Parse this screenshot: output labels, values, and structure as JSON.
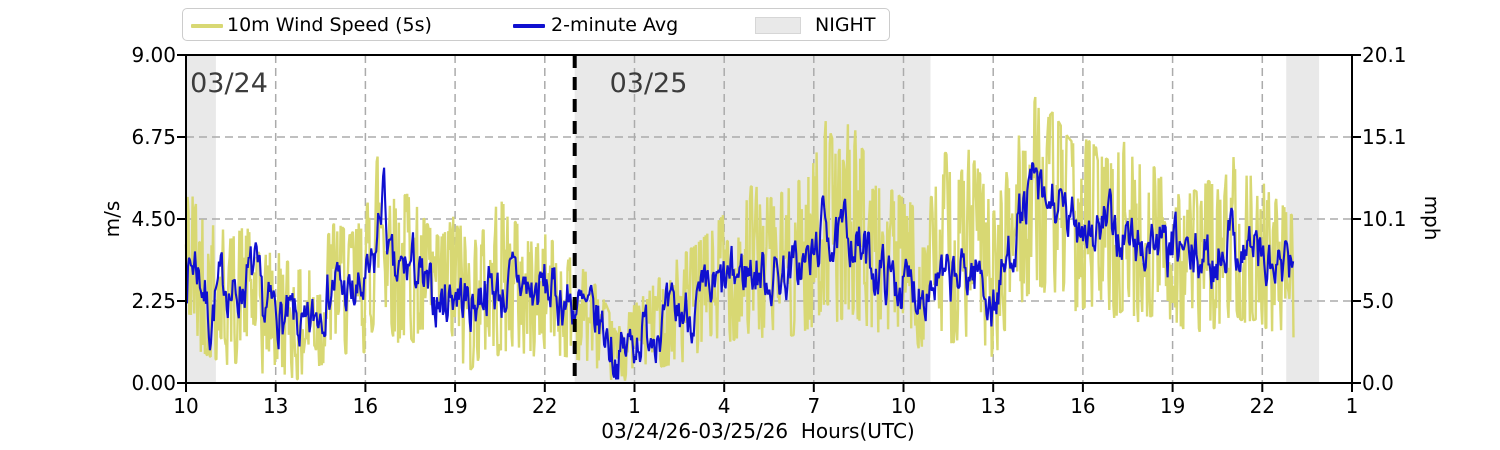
{
  "figure": {
    "legend": {
      "items": [
        {
          "label": "10m Wind Speed (5s)",
          "swatch": "line",
          "color": "#d8d873"
        },
        {
          "label": "2-minute Avg",
          "swatch": "line",
          "color": "#1010d0"
        },
        {
          "label": "NIGHT",
          "swatch": "patch",
          "color": "#e9e9e9"
        }
      ]
    },
    "left_axis": {
      "label": "m/s",
      "tick_labels": [
        "0.00",
        "2.25",
        "4.50",
        "6.75",
        "9.00"
      ],
      "tick_values": [
        0,
        2.25,
        4.5,
        6.75,
        9
      ]
    },
    "right_axis": {
      "label": "mph",
      "tick_labels": [
        "0.0",
        "5.0",
        "10.1",
        "15.1",
        "20.1"
      ],
      "tick_values_mph": [
        0,
        5.0,
        10.1,
        15.1,
        20.1
      ]
    },
    "x_axis": {
      "label": "03/24/26-03/25/26  Hours(UTC)",
      "tick_labels": [
        "10",
        "13",
        "16",
        "19",
        "22",
        "1",
        "4",
        "7",
        "10",
        "13",
        "16",
        "19",
        "22",
        "1"
      ],
      "tick_hours": [
        10,
        13,
        16,
        19,
        22,
        25,
        28,
        31,
        34,
        37,
        40,
        43,
        46,
        49
      ]
    },
    "annotations": [
      {
        "text": "03/24",
        "hour": 10.07
      },
      {
        "text": "03/25",
        "hour": 24.1
      }
    ],
    "colors": {
      "wind_5s": "#d8d873",
      "avg_2min": "#1010d0",
      "night": "#e9e9e9",
      "grid": "#ababab",
      "date_line": "#000000",
      "annotation_text": "#3c3c3c"
    }
  },
  "chart_data": {
    "type": "line",
    "title": "",
    "xlabel": "03/24/26-03/25/26  Hours(UTC)",
    "ylabel_left": "m/s",
    "ylabel_right": "mph",
    "x_range_hours_utc": [
      10,
      49
    ],
    "ylim_ms": [
      0,
      9
    ],
    "ylim_mph": [
      0,
      20.1
    ],
    "grid": true,
    "legend_position": "top-left-outside",
    "night_spans_hours": [
      [
        10.0,
        11.0
      ],
      [
        23.0,
        34.9
      ],
      [
        46.8,
        47.9
      ]
    ],
    "date_boundary_line_hour": 23.0,
    "data_end_hour": 47.05,
    "series": [
      {
        "name": "2-minute Avg",
        "style": "jagged-line",
        "points_hour_ms": [
          [
            10.0,
            3.0
          ],
          [
            10.3,
            3.4
          ],
          [
            10.6,
            2.6
          ],
          [
            10.8,
            1.6
          ],
          [
            11.0,
            2.4
          ],
          [
            11.3,
            2.9
          ],
          [
            11.6,
            2.3
          ],
          [
            12.0,
            2.8
          ],
          [
            12.3,
            3.1
          ],
          [
            12.6,
            1.9
          ],
          [
            13.0,
            2.1
          ],
          [
            13.3,
            1.6
          ],
          [
            13.6,
            1.8
          ],
          [
            14.0,
            1.2
          ],
          [
            14.3,
            1.8
          ],
          [
            14.6,
            2.3
          ],
          [
            15.0,
            2.8
          ],
          [
            15.3,
            2.5
          ],
          [
            15.6,
            2.3
          ],
          [
            16.0,
            2.6
          ],
          [
            16.3,
            3.2
          ],
          [
            16.6,
            5.5
          ],
          [
            16.8,
            3.4
          ],
          [
            17.0,
            2.8
          ],
          [
            17.3,
            3.1
          ],
          [
            17.6,
            3.3
          ],
          [
            18.0,
            2.5
          ],
          [
            18.3,
            2.3
          ],
          [
            18.6,
            2.2
          ],
          [
            19.0,
            2.6
          ],
          [
            19.3,
            2.3
          ],
          [
            19.6,
            2.1
          ],
          [
            20.0,
            2.7
          ],
          [
            20.3,
            2.6
          ],
          [
            20.6,
            2.4
          ],
          [
            21.0,
            2.9
          ],
          [
            21.3,
            2.7
          ],
          [
            21.6,
            2.4
          ],
          [
            22.0,
            2.7
          ],
          [
            22.3,
            2.4
          ],
          [
            22.6,
            2.3
          ],
          [
            23.0,
            2.1
          ],
          [
            23.4,
            1.9
          ],
          [
            23.8,
            1.7
          ],
          [
            24.1,
            1.3
          ],
          [
            24.4,
            0.6
          ],
          [
            24.7,
            0.9
          ],
          [
            25.0,
            1.2
          ],
          [
            25.5,
            1.5
          ],
          [
            26.0,
            1.7
          ],
          [
            26.5,
            1.9
          ],
          [
            27.0,
            2.0
          ],
          [
            27.5,
            2.4
          ],
          [
            28.0,
            2.7
          ],
          [
            28.5,
            3.0
          ],
          [
            29.0,
            3.1
          ],
          [
            29.5,
            2.9
          ],
          [
            30.0,
            3.0
          ],
          [
            30.5,
            3.2
          ],
          [
            31.0,
            3.4
          ],
          [
            31.4,
            4.6
          ],
          [
            31.7,
            3.6
          ],
          [
            32.1,
            4.3
          ],
          [
            32.5,
            3.7
          ],
          [
            33.0,
            3.2
          ],
          [
            33.5,
            2.9
          ],
          [
            34.0,
            2.7
          ],
          [
            34.5,
            2.6
          ],
          [
            35.0,
            2.8
          ],
          [
            35.5,
            2.7
          ],
          [
            36.0,
            3.0
          ],
          [
            36.5,
            3.1
          ],
          [
            37.0,
            2.0
          ],
          [
            37.4,
            3.2
          ],
          [
            37.8,
            4.3
          ],
          [
            38.1,
            4.9
          ],
          [
            38.4,
            5.6
          ],
          [
            38.7,
            4.7
          ],
          [
            39.0,
            5.0
          ],
          [
            39.3,
            4.6
          ],
          [
            39.6,
            4.3
          ],
          [
            40.0,
            4.5
          ],
          [
            40.4,
            4.1
          ],
          [
            40.8,
            4.4
          ],
          [
            41.2,
            4.0
          ],
          [
            41.6,
            3.9
          ],
          [
            42.0,
            3.7
          ],
          [
            42.4,
            4.0
          ],
          [
            42.8,
            3.5
          ],
          [
            43.2,
            3.8
          ],
          [
            43.6,
            3.3
          ],
          [
            44.0,
            3.5
          ],
          [
            44.4,
            3.2
          ],
          [
            44.9,
            4.2
          ],
          [
            45.3,
            3.6
          ],
          [
            45.7,
            3.9
          ],
          [
            46.1,
            3.2
          ],
          [
            46.5,
            3.0
          ],
          [
            46.8,
            3.1
          ],
          [
            47.05,
            2.9
          ]
        ]
      },
      {
        "name": "10m Wind Speed (5s)",
        "style": "noisy-band",
        "envelope_hi_hour_ms": [
          [
            10.0,
            5.2
          ],
          [
            10.5,
            4.9
          ],
          [
            11.0,
            4.4
          ],
          [
            11.5,
            3.9
          ],
          [
            12.0,
            4.3
          ],
          [
            12.5,
            3.4
          ],
          [
            13.0,
            3.6
          ],
          [
            13.5,
            3.2
          ],
          [
            14.0,
            3.0
          ],
          [
            14.5,
            3.6
          ],
          [
            15.0,
            4.4
          ],
          [
            15.5,
            4.0
          ],
          [
            16.0,
            4.6
          ],
          [
            16.6,
            6.9
          ],
          [
            17.0,
            5.3
          ],
          [
            17.5,
            5.1
          ],
          [
            18.0,
            4.4
          ],
          [
            18.5,
            3.9
          ],
          [
            19.0,
            4.6
          ],
          [
            19.5,
            3.7
          ],
          [
            20.0,
            4.2
          ],
          [
            20.5,
            5.0
          ],
          [
            21.0,
            4.4
          ],
          [
            21.5,
            3.9
          ],
          [
            22.0,
            4.1
          ],
          [
            22.5,
            3.6
          ],
          [
            23.0,
            3.3
          ],
          [
            23.5,
            2.9
          ],
          [
            24.0,
            2.2
          ],
          [
            24.4,
            1.4
          ],
          [
            25.0,
            2.1
          ],
          [
            25.5,
            2.5
          ],
          [
            26.0,
            3.0
          ],
          [
            26.5,
            3.4
          ],
          [
            27.0,
            3.7
          ],
          [
            27.5,
            4.1
          ],
          [
            28.0,
            4.6
          ],
          [
            28.5,
            5.1
          ],
          [
            29.0,
            5.4
          ],
          [
            29.5,
            5.0
          ],
          [
            30.0,
            5.2
          ],
          [
            30.5,
            5.5
          ],
          [
            31.0,
            6.0
          ],
          [
            31.4,
            7.2
          ],
          [
            31.8,
            6.2
          ],
          [
            32.2,
            7.3
          ],
          [
            32.6,
            6.4
          ],
          [
            33.0,
            5.8
          ],
          [
            33.5,
            5.3
          ],
          [
            34.0,
            5.0
          ],
          [
            34.5,
            4.8
          ],
          [
            35.0,
            5.1
          ],
          [
            35.4,
            6.3
          ],
          [
            35.8,
            5.4
          ],
          [
            36.2,
            6.4
          ],
          [
            36.6,
            5.6
          ],
          [
            37.0,
            4.6
          ],
          [
            37.4,
            5.6
          ],
          [
            37.8,
            6.8
          ],
          [
            38.2,
            7.3
          ],
          [
            38.45,
            7.9
          ],
          [
            38.7,
            7.1
          ],
          [
            39.0,
            7.4
          ],
          [
            39.4,
            6.8
          ],
          [
            39.8,
            6.4
          ],
          [
            40.2,
            6.7
          ],
          [
            40.6,
            6.2
          ],
          [
            41.0,
            6.0
          ],
          [
            41.4,
            6.6
          ],
          [
            41.8,
            5.9
          ],
          [
            42.2,
            6.1
          ],
          [
            42.6,
            5.6
          ],
          [
            43.0,
            5.9
          ],
          [
            43.4,
            5.4
          ],
          [
            43.8,
            5.2
          ],
          [
            44.2,
            5.5
          ],
          [
            44.6,
            5.2
          ],
          [
            45.0,
            6.2
          ],
          [
            45.4,
            5.6
          ],
          [
            45.8,
            5.8
          ],
          [
            46.2,
            5.2
          ],
          [
            46.6,
            4.9
          ],
          [
            47.05,
            4.5
          ]
        ],
        "envelope_lo_hour_ms": [
          [
            10.0,
            1.3
          ],
          [
            10.5,
            1.1
          ],
          [
            11.0,
            0.9
          ],
          [
            11.5,
            0.7
          ],
          [
            12.0,
            1.0
          ],
          [
            12.5,
            0.5
          ],
          [
            13.0,
            0.6
          ],
          [
            13.5,
            0.4
          ],
          [
            14.0,
            0.3
          ],
          [
            14.5,
            0.7
          ],
          [
            15.0,
            1.2
          ],
          [
            15.5,
            1.0
          ],
          [
            16.0,
            1.1
          ],
          [
            16.6,
            2.6
          ],
          [
            17.0,
            1.3
          ],
          [
            17.5,
            1.5
          ],
          [
            18.0,
            0.9
          ],
          [
            18.5,
            0.7
          ],
          [
            19.0,
            1.0
          ],
          [
            19.5,
            0.6
          ],
          [
            20.0,
            1.1
          ],
          [
            20.5,
            1.0
          ],
          [
            21.0,
            1.3
          ],
          [
            21.5,
            0.9
          ],
          [
            22.0,
            1.2
          ],
          [
            22.5,
            1.0
          ],
          [
            23.0,
            0.9
          ],
          [
            23.5,
            0.8
          ],
          [
            24.0,
            0.5
          ],
          [
            24.4,
            0.15
          ],
          [
            25.0,
            0.5
          ],
          [
            25.5,
            0.7
          ],
          [
            26.0,
            0.7
          ],
          [
            26.5,
            0.8
          ],
          [
            27.0,
            0.9
          ],
          [
            27.5,
            1.1
          ],
          [
            28.0,
            1.3
          ],
          [
            28.5,
            1.5
          ],
          [
            29.0,
            1.6
          ],
          [
            29.5,
            1.4
          ],
          [
            30.0,
            1.5
          ],
          [
            30.5,
            1.6
          ],
          [
            31.0,
            1.8
          ],
          [
            31.4,
            2.5
          ],
          [
            31.8,
            1.9
          ],
          [
            32.2,
            2.2
          ],
          [
            32.6,
            1.9
          ],
          [
            33.0,
            1.7
          ],
          [
            33.5,
            1.5
          ],
          [
            34.0,
            1.3
          ],
          [
            34.5,
            1.2
          ],
          [
            35.0,
            1.4
          ],
          [
            35.5,
            1.3
          ],
          [
            36.0,
            1.5
          ],
          [
            36.5,
            1.6
          ],
          [
            37.0,
            0.9
          ],
          [
            37.4,
            1.6
          ],
          [
            37.8,
            2.3
          ],
          [
            38.2,
            2.7
          ],
          [
            38.45,
            3.1
          ],
          [
            38.7,
            2.5
          ],
          [
            39.0,
            2.8
          ],
          [
            39.4,
            2.4
          ],
          [
            39.8,
            2.2
          ],
          [
            40.2,
            2.4
          ],
          [
            40.6,
            2.1
          ],
          [
            41.0,
            2.0
          ],
          [
            41.4,
            2.3
          ],
          [
            41.8,
            1.9
          ],
          [
            42.2,
            2.1
          ],
          [
            42.6,
            1.8
          ],
          [
            43.0,
            2.0
          ],
          [
            43.4,
            1.7
          ],
          [
            43.8,
            1.6
          ],
          [
            44.2,
            1.8
          ],
          [
            44.6,
            1.7
          ],
          [
            45.0,
            2.2
          ],
          [
            45.4,
            1.9
          ],
          [
            45.8,
            2.0
          ],
          [
            46.2,
            1.7
          ],
          [
            46.6,
            1.6
          ],
          [
            47.05,
            1.5
          ]
        ]
      }
    ]
  }
}
